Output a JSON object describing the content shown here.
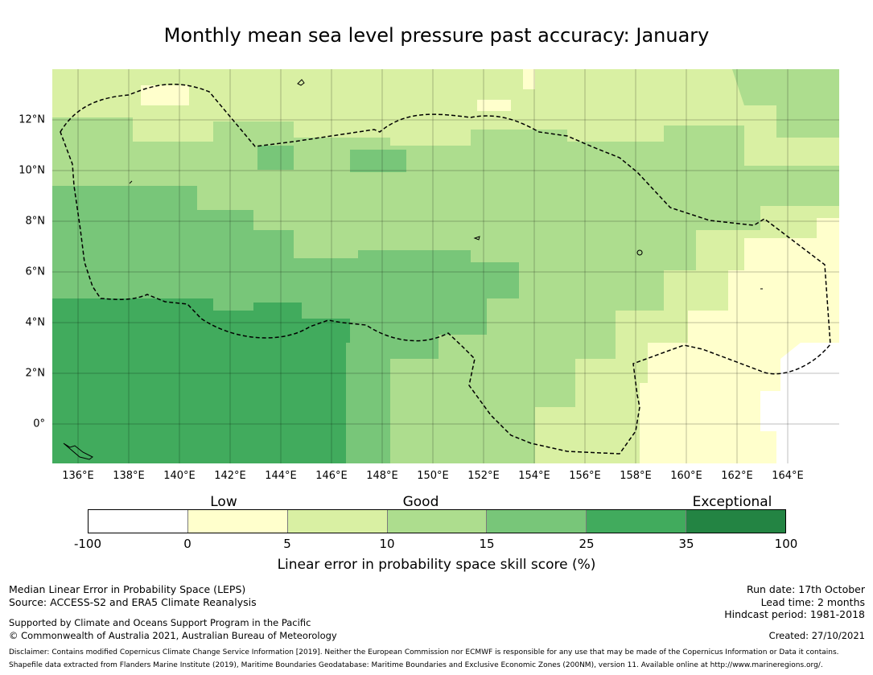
{
  "title": "Monthly mean sea level pressure past accuracy: January",
  "map": {
    "lon_labels": [
      "136°E",
      "138°E",
      "140°E",
      "142°E",
      "144°E",
      "146°E",
      "148°E",
      "150°E",
      "152°E",
      "154°E",
      "156°E",
      "158°E",
      "160°E",
      "162°E",
      "164°E"
    ],
    "lat_labels": [
      "12°N",
      "10°N",
      "8°N",
      "6°N",
      "4°N",
      "2°N",
      "0°"
    ],
    "region": "Federated States of Micronesia EEZ (dashed outline)"
  },
  "colorbar": {
    "categories": [
      "Low",
      "Good",
      "Exceptional"
    ],
    "ticks": [
      "-100",
      "0",
      "5",
      "10",
      "15",
      "25",
      "35",
      "100"
    ],
    "colors": [
      "#ffffff",
      "#ffffcc",
      "#d9f0a3",
      "#addd8e",
      "#78c679",
      "#41ab5d",
      "#238443"
    ],
    "label": "Linear error in probability space skill score (%)"
  },
  "footer": {
    "left_line1": "Median Linear Error in Probability Space (LEPS)",
    "left_line2": "Source: ACCESS-S2 and ERA5 Climate Reanalysis",
    "left_line3": "Supported by Climate and Oceans Support Program in the Pacific",
    "left_line4": "© Commonwealth of Australia 2021, Australian Bureau of Meteorology",
    "run_date": "Run date: 17th October",
    "lead_time": "Lead time: 2 months",
    "hindcast": "Hindcast period: 1981-2018",
    "created": "Created: 27/10/2021",
    "disclaimer": "Disclaimer: Contains modified Copernicus Climate Change Service Information [2019]. Neither the European Commission nor ECMWF is responsible for any use that may be made of the Copernicus Information or Data it contains.",
    "shapefile": "Shapefile data extracted from Flanders Marine Institute (2019), Maritime Boundaries Geodatabase: Maritime Boundaries and Exclusive Economic Zones (200NM), version 11. Available online at http://www.marineregions.org/."
  }
}
